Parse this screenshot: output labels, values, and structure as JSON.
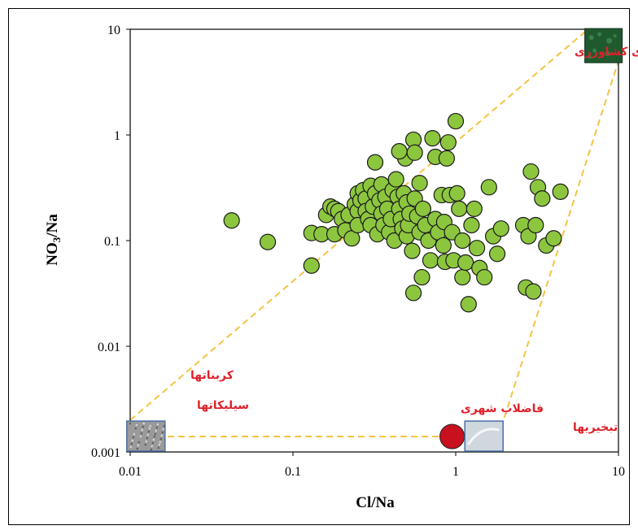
{
  "chart_data": {
    "type": "scatter",
    "title": "",
    "xlabel": "Cl/Na",
    "ylabel_base": "NO",
    "ylabel_sub": "3",
    "ylabel_tail": "/Na",
    "x_scale": "log",
    "y_scale": "log",
    "xlim": [
      0.01,
      10
    ],
    "ylim": [
      0.001,
      10
    ],
    "x_ticks": [
      {
        "value": 0.01,
        "label": "0.01"
      },
      {
        "value": 0.1,
        "label": "0.1"
      },
      {
        "value": 1,
        "label": "1"
      },
      {
        "value": 10,
        "label": "10"
      }
    ],
    "y_ticks": [
      {
        "value": 0.001,
        "label": "0.001"
      },
      {
        "value": 0.01,
        "label": "0.01"
      },
      {
        "value": 0.1,
        "label": "0.1"
      },
      {
        "value": 1,
        "label": "1"
      },
      {
        "value": 10,
        "label": "10"
      }
    ],
    "grid": false,
    "legend": "none",
    "colors": {
      "point_fill": "#8cc63f",
      "point_stroke": "#1a1a1a",
      "guide_line": "#f5c343",
      "label_text": "#e0202a",
      "urban_marker": "#c8101e",
      "agri_swatch": "#1f5a2e",
      "silicate_swatch": "#9a9a9a",
      "evaporite_swatch": "#cfd8df"
    },
    "end_members": {
      "agriculture": {
        "label": "فعالیتهای کشاورزی",
        "x": 8.0,
        "y": 7.0
      },
      "carbonate": {
        "label": "کربناتها"
      },
      "silicate": {
        "label": "سیلیکاتها",
        "x": 0.013,
        "y": 0.0014
      },
      "urban_sewage": {
        "label": "فاضلاب شهری",
        "x": 0.95,
        "y": 0.0014
      },
      "evaporite": {
        "label": "تبخیریها",
        "x": 1.5,
        "y": 0.0014
      }
    },
    "guide_lines": [
      {
        "from": [
          0.01,
          0.002
        ],
        "to": [
          6.5,
          10
        ]
      },
      {
        "from": [
          0.017,
          0.0014
        ],
        "to": [
          1.28,
          0.0014
        ]
      },
      {
        "from": [
          1.9,
          0.0017
        ],
        "to": [
          10,
          5.0
        ]
      }
    ],
    "points": [
      [
        0.042,
        0.155
      ],
      [
        0.07,
        0.097
      ],
      [
        0.13,
        0.058
      ],
      [
        0.13,
        0.118
      ],
      [
        0.15,
        0.115
      ],
      [
        0.16,
        0.175
      ],
      [
        0.17,
        0.21
      ],
      [
        0.18,
        0.2
      ],
      [
        0.18,
        0.115
      ],
      [
        0.19,
        0.19
      ],
      [
        0.2,
        0.16
      ],
      [
        0.21,
        0.125
      ],
      [
        0.22,
        0.175
      ],
      [
        0.23,
        0.105
      ],
      [
        0.24,
        0.22
      ],
      [
        0.25,
        0.28
      ],
      [
        0.25,
        0.19
      ],
      [
        0.25,
        0.14
      ],
      [
        0.26,
        0.24
      ],
      [
        0.27,
        0.3
      ],
      [
        0.28,
        0.25
      ],
      [
        0.28,
        0.19
      ],
      [
        0.29,
        0.16
      ],
      [
        0.3,
        0.33
      ],
      [
        0.3,
        0.14
      ],
      [
        0.31,
        0.21
      ],
      [
        0.32,
        0.55
      ],
      [
        0.32,
        0.28
      ],
      [
        0.33,
        0.115
      ],
      [
        0.34,
        0.24
      ],
      [
        0.35,
        0.18
      ],
      [
        0.35,
        0.34
      ],
      [
        0.36,
        0.14
      ],
      [
        0.37,
        0.26
      ],
      [
        0.38,
        0.2
      ],
      [
        0.39,
        0.12
      ],
      [
        0.4,
        0.16
      ],
      [
        0.41,
        0.3
      ],
      [
        0.42,
        0.1
      ],
      [
        0.43,
        0.38
      ],
      [
        0.44,
        0.26
      ],
      [
        0.45,
        0.2
      ],
      [
        0.46,
        0.16
      ],
      [
        0.47,
        0.13
      ],
      [
        0.48,
        0.28
      ],
      [
        0.49,
        0.6
      ],
      [
        0.5,
        0.23
      ],
      [
        0.5,
        0.11
      ],
      [
        0.51,
        0.14
      ],
      [
        0.52,
        0.18
      ],
      [
        0.54,
        0.08
      ],
      [
        0.55,
        0.9
      ],
      [
        0.56,
        0.68
      ],
      [
        0.56,
        0.25
      ],
      [
        0.58,
        0.17
      ],
      [
        0.6,
        0.35
      ],
      [
        0.6,
        0.12
      ],
      [
        0.62,
        0.045
      ],
      [
        0.63,
        0.2
      ],
      [
        0.65,
        0.14
      ],
      [
        0.68,
        0.1
      ],
      [
        0.7,
        0.065
      ],
      [
        0.72,
        0.93
      ],
      [
        0.75,
        0.62
      ],
      [
        0.75,
        0.16
      ],
      [
        0.78,
        0.12
      ],
      [
        0.82,
        0.27
      ],
      [
        0.84,
        0.09
      ],
      [
        0.85,
        0.15
      ],
      [
        0.86,
        0.063
      ],
      [
        0.9,
        0.85
      ],
      [
        0.92,
        0.27
      ],
      [
        0.95,
        0.12
      ],
      [
        0.97,
        0.065
      ],
      [
        1.0,
        1.35
      ],
      [
        1.02,
        0.28
      ],
      [
        1.05,
        0.2
      ],
      [
        1.1,
        0.1
      ],
      [
        1.1,
        0.045
      ],
      [
        1.15,
        0.062
      ],
      [
        1.2,
        0.025
      ],
      [
        1.25,
        0.14
      ],
      [
        1.3,
        0.2
      ],
      [
        1.35,
        0.085
      ],
      [
        1.4,
        0.055
      ],
      [
        1.5,
        0.045
      ],
      [
        1.6,
        0.32
      ],
      [
        1.7,
        0.11
      ],
      [
        1.8,
        0.075
      ],
      [
        1.9,
        0.13
      ],
      [
        0.55,
        0.032
      ],
      [
        0.45,
        0.7
      ],
      [
        0.88,
        0.6
      ],
      [
        2.6,
        0.14
      ],
      [
        2.7,
        0.036
      ],
      [
        2.8,
        0.11
      ],
      [
        2.9,
        0.45
      ],
      [
        3.0,
        0.033
      ],
      [
        3.1,
        0.14
      ],
      [
        3.2,
        0.32
      ],
      [
        3.4,
        0.25
      ],
      [
        3.6,
        0.09
      ],
      [
        4.0,
        0.105
      ],
      [
        4.4,
        0.29
      ]
    ]
  }
}
